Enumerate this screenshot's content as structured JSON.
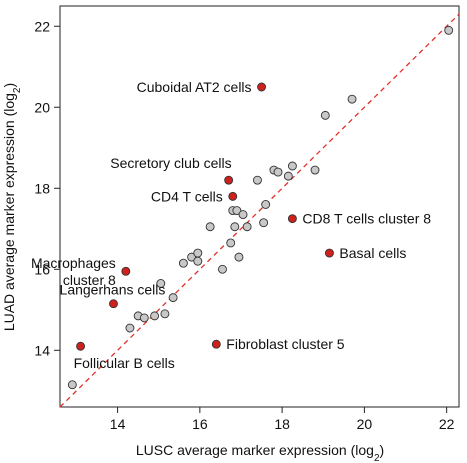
{
  "chart_data": {
    "type": "scatter",
    "xlabel": "LUSC average marker expression (log",
    "ylabel": "LUAD average marker expression (log",
    "log_base_subscript": "2",
    "axis_label_suffix": ")",
    "xlim": [
      12.6,
      22.3
    ],
    "ylim": [
      12.6,
      22.5
    ],
    "xticks": [
      14,
      16,
      18,
      20,
      22
    ],
    "yticks": [
      14,
      16,
      18,
      20,
      22
    ],
    "grid": false,
    "reference_line": {
      "style": "dashed",
      "slope": 1,
      "intercept": 0,
      "color": "#e0322a"
    },
    "colors": {
      "gray_point": "#c8c8c8",
      "red_point": "#d0201d",
      "point_edge": "#333333"
    },
    "gray_points": [
      {
        "x": 12.9,
        "y": 13.15
      },
      {
        "x": 14.3,
        "y": 14.55
      },
      {
        "x": 14.5,
        "y": 14.85
      },
      {
        "x": 14.65,
        "y": 14.8
      },
      {
        "x": 14.9,
        "y": 14.85
      },
      {
        "x": 15.15,
        "y": 14.9
      },
      {
        "x": 15.05,
        "y": 15.65
      },
      {
        "x": 15.35,
        "y": 15.3
      },
      {
        "x": 15.6,
        "y": 16.15
      },
      {
        "x": 15.8,
        "y": 16.3
      },
      {
        "x": 15.95,
        "y": 16.4
      },
      {
        "x": 15.95,
        "y": 16.2
      },
      {
        "x": 16.25,
        "y": 17.05
      },
      {
        "x": 16.55,
        "y": 16.0
      },
      {
        "x": 16.75,
        "y": 16.65
      },
      {
        "x": 16.8,
        "y": 17.45
      },
      {
        "x": 16.9,
        "y": 17.45
      },
      {
        "x": 16.85,
        "y": 17.05
      },
      {
        "x": 16.95,
        "y": 16.3
      },
      {
        "x": 17.05,
        "y": 17.35
      },
      {
        "x": 17.15,
        "y": 17.05
      },
      {
        "x": 17.4,
        "y": 18.2
      },
      {
        "x": 17.55,
        "y": 17.15
      },
      {
        "x": 17.6,
        "y": 17.6
      },
      {
        "x": 17.8,
        "y": 18.45
      },
      {
        "x": 17.9,
        "y": 18.4
      },
      {
        "x": 18.15,
        "y": 18.3
      },
      {
        "x": 18.25,
        "y": 18.55
      },
      {
        "x": 18.8,
        "y": 18.45
      },
      {
        "x": 19.05,
        "y": 19.8
      },
      {
        "x": 19.7,
        "y": 20.2
      },
      {
        "x": 22.05,
        "y": 21.9
      }
    ],
    "labeled_points": [
      {
        "label": "Cuboidal AT2 cells",
        "x": 17.5,
        "y": 20.5,
        "label_side": "left"
      },
      {
        "label": "Secretory club cells",
        "x": 16.7,
        "y": 18.2,
        "label_side": "left_above"
      },
      {
        "label": "CD4 T cells",
        "x": 16.8,
        "y": 17.8,
        "label_side": "left"
      },
      {
        "label": "CD8 T cells cluster 8",
        "x": 18.25,
        "y": 17.25,
        "label_side": "right"
      },
      {
        "label": "Basal cells",
        "x": 19.15,
        "y": 16.4,
        "label_side": "right"
      },
      {
        "label": [
          "Macrophages",
          "cluster 8"
        ],
        "x": 14.2,
        "y": 15.95,
        "label_side": "left"
      },
      {
        "label": "Langerhans cells",
        "x": 13.9,
        "y": 15.15,
        "label_side": "above"
      },
      {
        "label": "Fibroblast cluster 5",
        "x": 16.4,
        "y": 14.15,
        "label_side": "right"
      },
      {
        "label": "Follicular B cells",
        "x": 13.1,
        "y": 14.1,
        "label_side": "below_right"
      }
    ]
  }
}
